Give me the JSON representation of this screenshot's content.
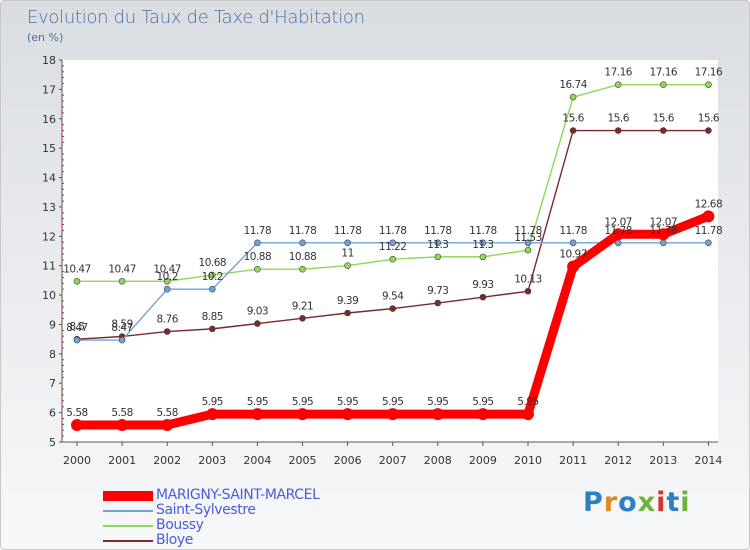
{
  "title": "Evolution du Taux de Taxe d'Habitation",
  "subtitle": "(en %)",
  "logo": {
    "text": "Proxiti",
    "colors": [
      "#2e7fc2",
      "#e08a1e",
      "#2e7fc2",
      "#6fb33b",
      "#d9342b",
      "#2e7fc2",
      "#6fb33b"
    ]
  },
  "chart_data": {
    "type": "line",
    "x": [
      2000,
      2001,
      2002,
      2003,
      2004,
      2005,
      2006,
      2007,
      2008,
      2009,
      2010,
      2011,
      2012,
      2013,
      2014
    ],
    "ylim": [
      5,
      18
    ],
    "yticks": [
      5,
      6,
      7,
      8,
      9,
      10,
      11,
      12,
      13,
      14,
      15,
      16,
      17,
      18
    ],
    "grid": false,
    "legend_position": "bottom-left",
    "series": [
      {
        "name": "MARIGNY-SAINT-MARCEL",
        "color": "#ff0000",
        "values": [
          5.58,
          5.58,
          5.58,
          5.95,
          5.95,
          5.95,
          5.95,
          5.95,
          5.95,
          5.95,
          5.95,
          10.97,
          12.07,
          12.07,
          12.68
        ],
        "labels": [
          "5.58",
          "5.58",
          "5.58",
          "5.95",
          "5.95",
          "5.95",
          "5.95",
          "5.95",
          "5.95",
          "5.95",
          "5.95",
          "10.97",
          "12.07",
          "12.07",
          "12.68"
        ]
      },
      {
        "name": "Saint-Sylvestre",
        "color": "#6fa3d8",
        "values": [
          8.47,
          8.47,
          10.2,
          10.2,
          11.78,
          11.78,
          11.78,
          11.78,
          11.78,
          11.78,
          11.78,
          11.78,
          11.78,
          11.78,
          11.78
        ],
        "labels": [
          "8.47",
          "8.47",
          "10.2",
          "10.2",
          "11.78",
          "11.78",
          "11.78",
          "11.78",
          "11.78",
          "11.78",
          "11.78",
          "11.78",
          "11.78",
          "11.78",
          "11.78"
        ]
      },
      {
        "name": "Boussy",
        "color": "#8fd85a",
        "values": [
          10.47,
          10.47,
          10.47,
          10.68,
          10.88,
          10.88,
          11,
          11.22,
          11.3,
          11.3,
          11.53,
          16.74,
          17.16,
          17.16,
          17.16
        ],
        "labels": [
          "10.47",
          "10.47",
          "10.47",
          "10.68",
          "10.88",
          "10.88",
          "11",
          "11.22",
          "11.3",
          "11.3",
          "11.53",
          "16.74",
          "17.16",
          "17.16",
          "17.16"
        ]
      },
      {
        "name": "Bloye",
        "color": "#7a2a2a",
        "values": [
          8.5,
          8.59,
          8.76,
          8.85,
          9.03,
          9.21,
          9.39,
          9.54,
          9.73,
          9.93,
          10.13,
          15.6,
          15.6,
          15.6,
          15.6
        ],
        "labels": [
          "8.5",
          "8.59",
          "8.76",
          "8.85",
          "9.03",
          "9.21",
          "9.39",
          "9.54",
          "9.73",
          "9.93",
          "10.13",
          "15.6",
          "15.6",
          "15.6",
          "15.6"
        ]
      }
    ]
  }
}
